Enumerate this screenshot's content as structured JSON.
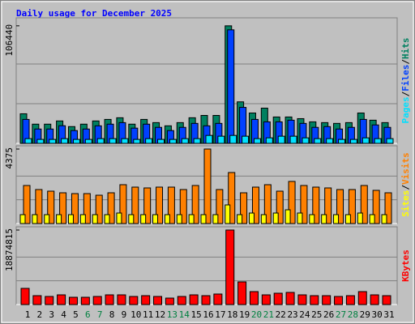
{
  "chart_data": [
    {
      "type": "bar",
      "title": "Daily usage for December 2025",
      "legend_separator": "/",
      "ylim": [
        0,
        113680
      ],
      "yticks": [
        106440
      ],
      "series": [
        {
          "name": "Pages",
          "color": "#00e0ff",
          "values": [
            4300,
            3600,
            3600,
            4300,
            3600,
            3600,
            4300,
            4300,
            4300,
            3600,
            4300,
            3600,
            3600,
            4300,
            4300,
            7200,
            6500,
            7200,
            6500,
            4300,
            5000,
            6500,
            6500,
            5000,
            4300,
            4300,
            3600,
            3600,
            5000,
            4300,
            4300
          ]
        },
        {
          "name": "Files",
          "color": "#0040ff",
          "values": [
            21700,
            13000,
            13000,
            16000,
            11600,
            13000,
            15900,
            17400,
            18800,
            13800,
            17400,
            14500,
            11600,
            14500,
            18100,
            15900,
            18100,
            102800,
            32600,
            21700,
            19500,
            19500,
            21000,
            18100,
            14500,
            15200,
            13000,
            14500,
            21700,
            16700,
            14500
          ]
        },
        {
          "name": "Hits",
          "color": "#008060",
          "values": [
            26800,
            17400,
            17400,
            20300,
            15200,
            17400,
            20300,
            21700,
            23200,
            17400,
            21700,
            18800,
            15900,
            18800,
            23200,
            25300,
            25300,
            106440,
            37600,
            27500,
            31900,
            23900,
            23900,
            22400,
            19500,
            18800,
            18100,
            18800,
            27500,
            21000,
            18800
          ]
        }
      ]
    },
    {
      "type": "bar",
      "legend_separator": "/",
      "ylim": [
        0,
        4565
      ],
      "yticks": [
        4375
      ],
      "series": [
        {
          "name": "Sites",
          "color": "#ffff00",
          "values": [
            523,
            523,
            523,
            523,
            523,
            523,
            523,
            523,
            618,
            523,
            523,
            523,
            523,
            523,
            523,
            523,
            523,
            1094,
            523,
            618,
            523,
            618,
            808,
            618,
            523,
            523,
            523,
            523,
            618,
            523,
            523
          ]
        },
        {
          "name": "Visits",
          "color": "#ff8000",
          "values": [
            2235,
            1997,
            1902,
            1807,
            1759,
            1759,
            1664,
            1807,
            2282,
            2140,
            2092,
            2140,
            2140,
            1997,
            2235,
            4375,
            1997,
            2996,
            1807,
            2140,
            2282,
            1902,
            2473,
            2235,
            2140,
            2092,
            1997,
            1997,
            2235,
            1950,
            1807
          ]
        }
      ]
    },
    {
      "type": "bar",
      "ylim": [
        0,
        19695000
      ],
      "yticks": [
        18874815
      ],
      "series": [
        {
          "name": "KBytes",
          "color": "#ff0000",
          "values": [
            4103000,
            2257000,
            2052000,
            2462000,
            1846000,
            1846000,
            2052000,
            2462000,
            2462000,
            2052000,
            2257000,
            2052000,
            1641000,
            2052000,
            2462000,
            2257000,
            2667000,
            18874815,
            5745000,
            3283000,
            2462000,
            2872000,
            3077000,
            2462000,
            2257000,
            2257000,
            2052000,
            2257000,
            3283000,
            2462000,
            2257000
          ]
        }
      ],
      "categories": [
        "1",
        "2",
        "3",
        "4",
        "5",
        "6",
        "7",
        "8",
        "9",
        "10",
        "11",
        "12",
        "13",
        "14",
        "15",
        "16",
        "17",
        "18",
        "19",
        "20",
        "21",
        "22",
        "23",
        "24",
        "25",
        "26",
        "27",
        "28",
        "29",
        "30",
        "31"
      ],
      "category_label_colors": [
        "#000000",
        "#000000",
        "#000000",
        "#000000",
        "#000000",
        "#008040",
        "#008040",
        "#000000",
        "#000000",
        "#000000",
        "#000000",
        "#000000",
        "#008040",
        "#008040",
        "#000000",
        "#000000",
        "#000000",
        "#000000",
        "#000000",
        "#008040",
        "#008040",
        "#000000",
        "#000000",
        "#000000",
        "#000000",
        "#000000",
        "#008040",
        "#008040",
        "#000000",
        "#000000",
        "#000000"
      ]
    }
  ]
}
